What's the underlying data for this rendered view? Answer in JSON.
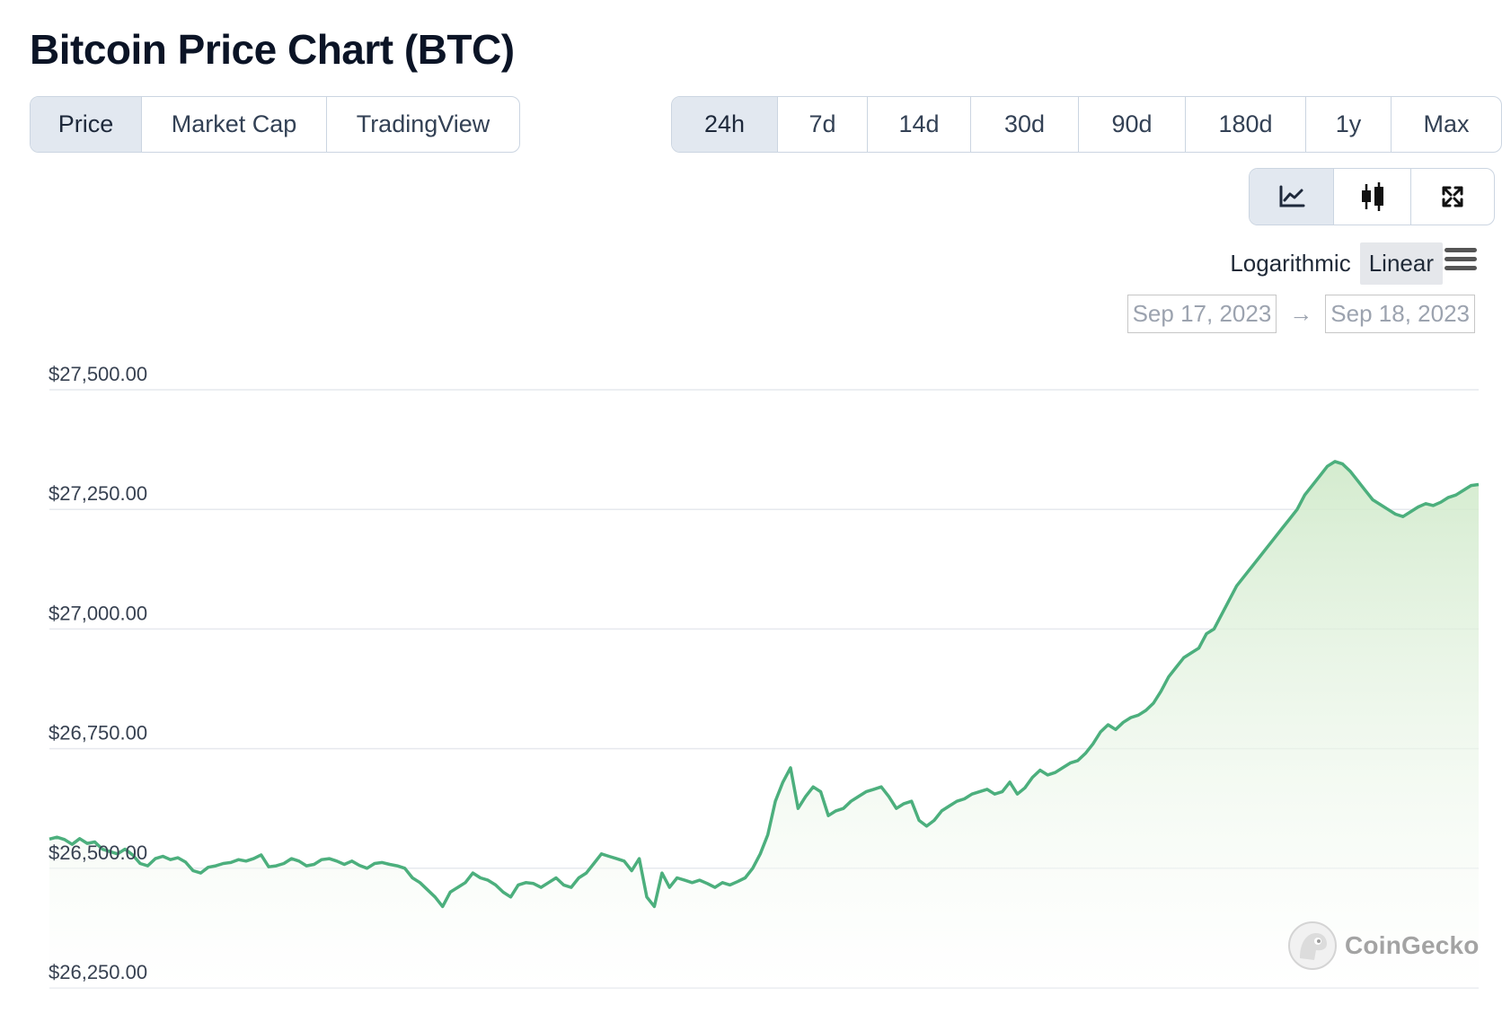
{
  "title": "Bitcoin Price Chart (BTC)",
  "view_tabs": [
    {
      "label": "Price",
      "active": true
    },
    {
      "label": "Market Cap",
      "active": false
    },
    {
      "label": "TradingView",
      "active": false
    }
  ],
  "range_tabs": [
    {
      "label": "24h",
      "active": true
    },
    {
      "label": "7d",
      "active": false
    },
    {
      "label": "14d",
      "active": false
    },
    {
      "label": "30d",
      "active": false
    },
    {
      "label": "90d",
      "active": false
    },
    {
      "label": "180d",
      "active": false
    },
    {
      "label": "1y",
      "active": false
    },
    {
      "label": "Max",
      "active": false
    }
  ],
  "tools": [
    {
      "icon": "line-chart-icon",
      "active": true
    },
    {
      "icon": "candlestick-icon",
      "active": false
    },
    {
      "icon": "fullscreen-icon",
      "active": false
    }
  ],
  "scale": {
    "logarithmic": "Logarithmic",
    "linear": "Linear",
    "active": "Linear"
  },
  "date_range": {
    "from": "Sep 17, 2023",
    "arrow": "→",
    "to": "Sep 18, 2023"
  },
  "watermark": "CoinGecko",
  "colors": {
    "line": "#4caf7d",
    "fill_top": "#d9efd6",
    "grid": "#e6e9ee"
  },
  "chart_data": {
    "type": "area",
    "title": "",
    "xlabel": "",
    "ylabel": "",
    "x_range": [
      "Sep 17, 2023",
      "Sep 18, 2023"
    ],
    "ylim": [
      26250,
      27500
    ],
    "y_ticks": [
      27500,
      27250,
      27000,
      26750,
      26500,
      26250
    ],
    "y_tick_labels": [
      "$27,500.00",
      "$27,250.00",
      "$27,000.00",
      "$26,750.00",
      "$26,500.00",
      "$26,250.00"
    ],
    "grid": true,
    "legend": "none",
    "series": [
      {
        "values": [
          26561,
          26565,
          26560,
          26550,
          26562,
          26552,
          26555,
          26540,
          26535,
          26530,
          26540,
          26528,
          26510,
          26505,
          26520,
          26525,
          26518,
          26522,
          26513,
          26495,
          26490,
          26502,
          26505,
          26510,
          26512,
          26518,
          26515,
          26520,
          26528,
          26503,
          26505,
          26510,
          26520,
          26515,
          26505,
          26508,
          26518,
          26520,
          26515,
          26508,
          26515,
          26506,
          26500,
          26510,
          26512,
          26508,
          26505,
          26500,
          26480,
          26470,
          26455,
          26440,
          26420,
          26450,
          26460,
          26470,
          26490,
          26480,
          26475,
          26465,
          26450,
          26440,
          26465,
          26470,
          26468,
          26460,
          26470,
          26480,
          26465,
          26460,
          26480,
          26490,
          26510,
          26530,
          26525,
          26520,
          26515,
          26495,
          26520,
          26440,
          26420,
          26490,
          26460,
          26480,
          26475,
          26470,
          26475,
          26468,
          26460,
          26470,
          26465,
          26472,
          26480,
          26500,
          26530,
          26570,
          26640,
          26680,
          26710,
          26625,
          26650,
          26670,
          26660,
          26610,
          26620,
          26625,
          26640,
          26650,
          26660,
          26665,
          26670,
          26650,
          26625,
          26635,
          26640,
          26600,
          26588,
          26600,
          26620,
          26630,
          26640,
          26645,
          26655,
          26660,
          26665,
          26655,
          26660,
          26680,
          26655,
          26668,
          26690,
          26705,
          26695,
          26700,
          26710,
          26720,
          26725,
          26740,
          26760,
          26785,
          26800,
          26790,
          26805,
          26815,
          26820,
          26830,
          26845,
          26870,
          26900,
          26920,
          26940,
          26950,
          26960,
          26990,
          27000,
          27030,
          27060,
          27090,
          27110,
          27130,
          27150,
          27170,
          27190,
          27210,
          27230,
          27250,
          27280,
          27300,
          27320,
          27340,
          27350,
          27345,
          27330,
          27310,
          27290,
          27270,
          27260,
          27250,
          27240,
          27235,
          27245,
          27255,
          27262,
          27258,
          27265,
          27275,
          27280,
          27290,
          27300,
          27302
        ]
      }
    ]
  }
}
